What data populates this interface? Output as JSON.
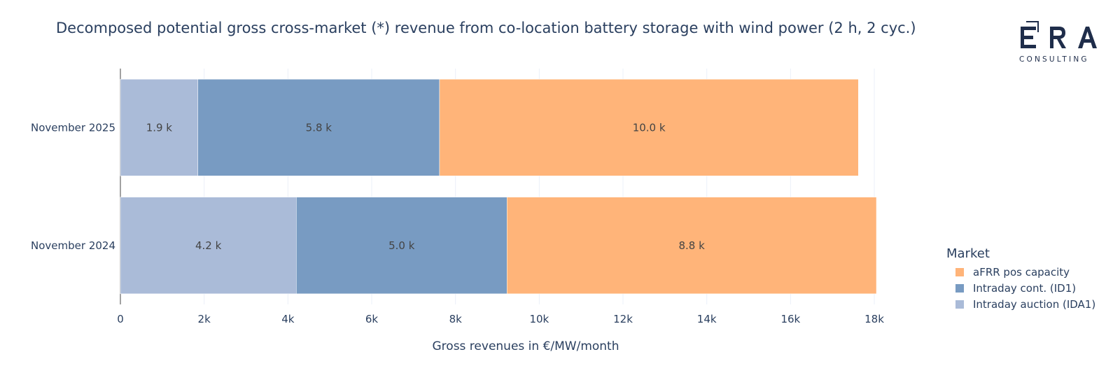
{
  "chart_data": {
    "type": "bar",
    "orientation": "horizontal",
    "stacked": true,
    "title": "Decomposed potential gross cross-market (*) revenue from co-location battery storage with wind power (2 h, 2 cyc.)",
    "xlabel": "Gross revenues in €/MW/month",
    "ylabel": "",
    "xlim": [
      0,
      18200
    ],
    "x_ticks": [
      0,
      2000,
      4000,
      6000,
      8000,
      10000,
      12000,
      14000,
      16000,
      18000
    ],
    "x_tick_labels": [
      "0",
      "2k",
      "4k",
      "6k",
      "8k",
      "10k",
      "12k",
      "14k",
      "16k",
      "18k"
    ],
    "grid": true,
    "categories": [
      "November 2025",
      "November 2024"
    ],
    "series": [
      {
        "name": "Intraday auction (IDA1)",
        "color": "#aabbd8",
        "values": [
          1850,
          4200
        ],
        "labels": [
          "1.9 k",
          "4.2 k"
        ]
      },
      {
        "name": "Intraday cont. (ID1)",
        "color": "#789bc2",
        "values": [
          5770,
          5030
        ],
        "labels": [
          "5.8 k",
          "5.0 k"
        ]
      },
      {
        "name": "aFRR pos capacity",
        "color": "#ffb479",
        "values": [
          10000,
          8820
        ],
        "labels": [
          "10.0 k",
          "8.8 k"
        ]
      }
    ],
    "legend": {
      "title": "Market",
      "placement": "right",
      "order": [
        "aFRR pos capacity",
        "Intraday cont. (ID1)",
        "Intraday auction (IDA1)"
      ]
    }
  },
  "logo": {
    "main": "ERA",
    "sub": "CONSULTING"
  }
}
